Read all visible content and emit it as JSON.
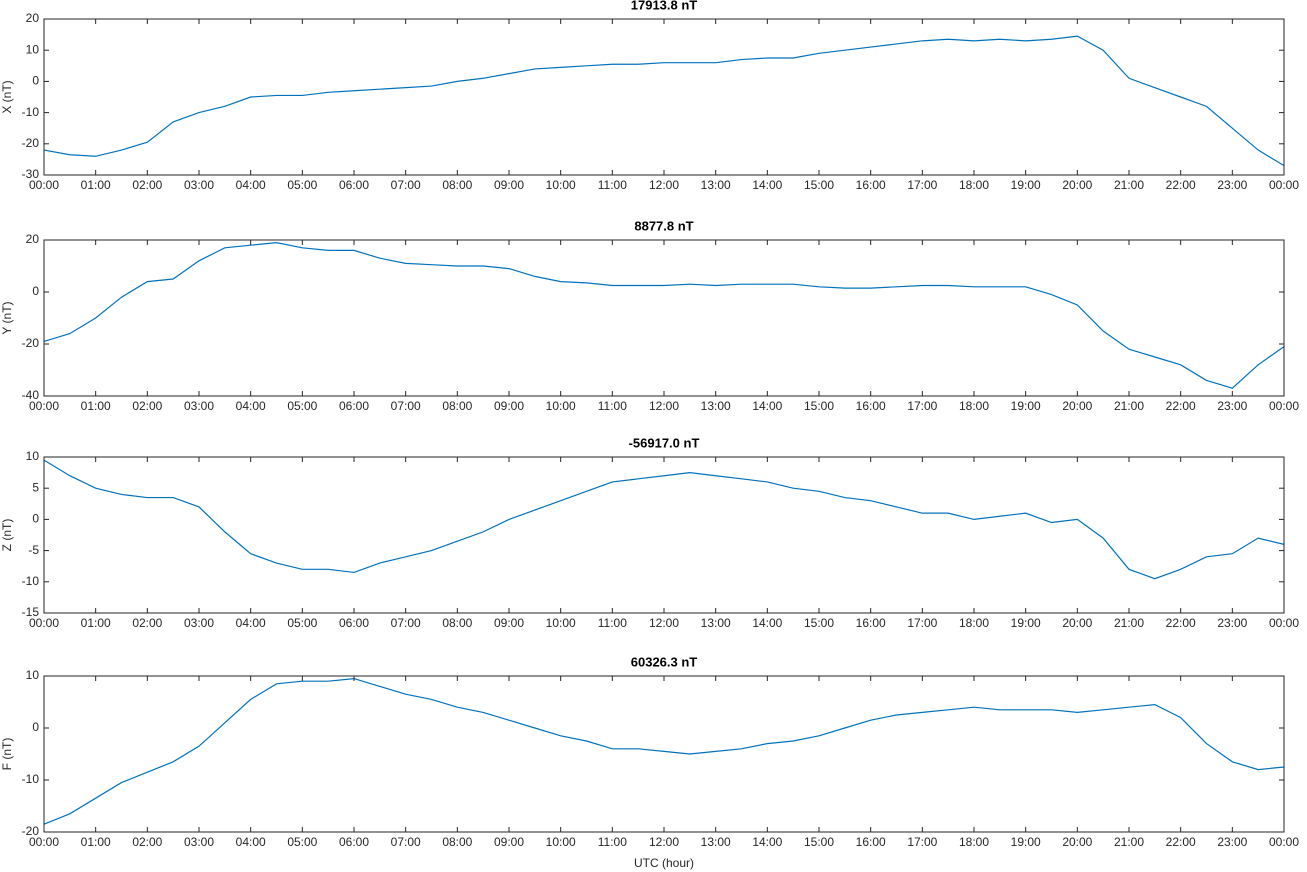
{
  "chart_data": [
    {
      "type": "line",
      "title": "17913.8 nT",
      "ylabel": "X (nT)",
      "color": "#0072bd",
      "x": [
        0,
        0.5,
        1,
        1.5,
        2,
        2.5,
        3,
        3.5,
        4,
        4.5,
        5,
        5.5,
        6,
        6.5,
        7,
        7.5,
        8,
        8.5,
        9,
        9.5,
        10,
        10.5,
        11,
        11.5,
        12,
        12.5,
        13,
        13.5,
        14,
        14.5,
        15,
        15.5,
        16,
        16.5,
        17,
        17.5,
        18,
        18.5,
        19,
        19.5,
        20,
        20.5,
        21,
        21.5,
        22,
        22.5,
        23,
        23.5,
        24
      ],
      "values": [
        -22,
        -23.5,
        -24,
        -22,
        -19.5,
        -13,
        -10,
        -8,
        -5,
        -4.5,
        -4.5,
        -3.5,
        -3,
        -2.5,
        -2,
        -1.5,
        0,
        1,
        2.5,
        4,
        4.5,
        5,
        5.5,
        5.5,
        6,
        6,
        6,
        7,
        7.5,
        7.5,
        9,
        10,
        11,
        12,
        13,
        13.5,
        13,
        13.5,
        13,
        13.5,
        14.5,
        10,
        1,
        -2,
        -5,
        -8,
        -15,
        -22,
        -27
      ],
      "xlim": [
        0,
        24
      ],
      "ylim": [
        -30,
        20
      ],
      "yticks": [
        -30,
        -20,
        -10,
        0,
        10,
        20
      ],
      "xticks": [
        {
          "value": 0,
          "label": "00:00"
        },
        {
          "value": 1,
          "label": "01:00"
        },
        {
          "value": 2,
          "label": "02:00"
        },
        {
          "value": 3,
          "label": "03:00"
        },
        {
          "value": 4,
          "label": "04:00"
        },
        {
          "value": 5,
          "label": "05:00"
        },
        {
          "value": 6,
          "label": "06:00"
        },
        {
          "value": 7,
          "label": "07:00"
        },
        {
          "value": 8,
          "label": "08:00"
        },
        {
          "value": 9,
          "label": "09:00"
        },
        {
          "value": 10,
          "label": "10:00"
        },
        {
          "value": 11,
          "label": "11:00"
        },
        {
          "value": 12,
          "label": "12:00"
        },
        {
          "value": 13,
          "label": "13:00"
        },
        {
          "value": 14,
          "label": "14:00"
        },
        {
          "value": 15,
          "label": "15:00"
        },
        {
          "value": 16,
          "label": "16:00"
        },
        {
          "value": 17,
          "label": "17:00"
        },
        {
          "value": 18,
          "label": "18:00"
        },
        {
          "value": 19,
          "label": "19:00"
        },
        {
          "value": 20,
          "label": "20:00"
        },
        {
          "value": 21,
          "label": "21:00"
        },
        {
          "value": 22,
          "label": "22:00"
        },
        {
          "value": 23,
          "label": "23:00"
        },
        {
          "value": 24,
          "label": "00:00"
        }
      ]
    },
    {
      "type": "line",
      "title": "8877.8 nT",
      "ylabel": "Y (nT)",
      "color": "#0072bd",
      "x": [
        0,
        0.5,
        1,
        1.5,
        2,
        2.5,
        3,
        3.5,
        4,
        4.5,
        5,
        5.5,
        6,
        6.5,
        7,
        7.5,
        8,
        8.5,
        9,
        9.5,
        10,
        10.5,
        11,
        11.5,
        12,
        12.5,
        13,
        13.5,
        14,
        14.5,
        15,
        15.5,
        16,
        16.5,
        17,
        17.5,
        18,
        18.5,
        19,
        19.5,
        20,
        20.5,
        21,
        21.5,
        22,
        22.5,
        23,
        23.5,
        24
      ],
      "values": [
        -19,
        -16,
        -10,
        -2,
        4,
        5,
        12,
        17,
        18,
        19,
        17,
        16,
        16,
        13,
        11,
        10.5,
        10,
        10,
        9,
        6,
        4,
        3.5,
        2.5,
        2.5,
        2.5,
        3,
        2.5,
        3,
        3,
        3,
        2,
        1.5,
        1.5,
        2,
        2.5,
        2.5,
        2,
        2,
        2,
        -1,
        -5,
        -15,
        -22,
        -25,
        -28,
        -34,
        -37,
        -28,
        -21
      ],
      "xlim": [
        0,
        24
      ],
      "ylim": [
        -40,
        20
      ],
      "yticks": [
        -40,
        -20,
        0,
        20
      ],
      "xticks": [
        {
          "value": 0,
          "label": "00:00"
        },
        {
          "value": 1,
          "label": "01:00"
        },
        {
          "value": 2,
          "label": "02:00"
        },
        {
          "value": 3,
          "label": "03:00"
        },
        {
          "value": 4,
          "label": "04:00"
        },
        {
          "value": 5,
          "label": "05:00"
        },
        {
          "value": 6,
          "label": "06:00"
        },
        {
          "value": 7,
          "label": "07:00"
        },
        {
          "value": 8,
          "label": "08:00"
        },
        {
          "value": 9,
          "label": "09:00"
        },
        {
          "value": 10,
          "label": "10:00"
        },
        {
          "value": 11,
          "label": "11:00"
        },
        {
          "value": 12,
          "label": "12:00"
        },
        {
          "value": 13,
          "label": "13:00"
        },
        {
          "value": 14,
          "label": "14:00"
        },
        {
          "value": 15,
          "label": "15:00"
        },
        {
          "value": 16,
          "label": "16:00"
        },
        {
          "value": 17,
          "label": "17:00"
        },
        {
          "value": 18,
          "label": "18:00"
        },
        {
          "value": 19,
          "label": "19:00"
        },
        {
          "value": 20,
          "label": "20:00"
        },
        {
          "value": 21,
          "label": "21:00"
        },
        {
          "value": 22,
          "label": "22:00"
        },
        {
          "value": 23,
          "label": "23:00"
        },
        {
          "value": 24,
          "label": "00:00"
        }
      ]
    },
    {
      "type": "line",
      "title": "-56917.0 nT",
      "ylabel": "Z (nT)",
      "color": "#0072bd",
      "x": [
        0,
        0.5,
        1,
        1.5,
        2,
        2.5,
        3,
        3.5,
        4,
        4.5,
        5,
        5.5,
        6,
        6.5,
        7,
        7.5,
        8,
        8.5,
        9,
        9.5,
        10,
        10.5,
        11,
        11.5,
        12,
        12.5,
        13,
        13.5,
        14,
        14.5,
        15,
        15.5,
        16,
        16.5,
        17,
        17.5,
        18,
        18.5,
        19,
        19.5,
        20,
        20.5,
        21,
        21.5,
        22,
        22.5,
        23,
        23.5,
        24
      ],
      "values": [
        9.5,
        7,
        5,
        4,
        3.5,
        3.5,
        2,
        -2,
        -5.5,
        -7,
        -8,
        -8,
        -8.5,
        -7,
        -6,
        -5,
        -3.5,
        -2,
        0,
        1.5,
        3,
        4.5,
        6,
        6.5,
        7,
        7.5,
        7,
        6.5,
        6,
        5,
        4.5,
        3.5,
        3,
        2,
        1,
        1,
        0,
        0.5,
        1,
        -0.5,
        0,
        -3,
        -8,
        -9.5,
        -8,
        -6,
        -5.5,
        -3,
        -4
      ],
      "xlim": [
        0,
        24
      ],
      "ylim": [
        -15,
        10
      ],
      "yticks": [
        -15,
        -10,
        -5,
        0,
        5,
        10
      ],
      "xticks": [
        {
          "value": 0,
          "label": "00:00"
        },
        {
          "value": 1,
          "label": "01:00"
        },
        {
          "value": 2,
          "label": "02:00"
        },
        {
          "value": 3,
          "label": "03:00"
        },
        {
          "value": 4,
          "label": "04:00"
        },
        {
          "value": 5,
          "label": "05:00"
        },
        {
          "value": 6,
          "label": "06:00"
        },
        {
          "value": 7,
          "label": "07:00"
        },
        {
          "value": 8,
          "label": "08:00"
        },
        {
          "value": 9,
          "label": "09:00"
        },
        {
          "value": 10,
          "label": "10:00"
        },
        {
          "value": 11,
          "label": "11:00"
        },
        {
          "value": 12,
          "label": "12:00"
        },
        {
          "value": 13,
          "label": "13:00"
        },
        {
          "value": 14,
          "label": "14:00"
        },
        {
          "value": 15,
          "label": "15:00"
        },
        {
          "value": 16,
          "label": "16:00"
        },
        {
          "value": 17,
          "label": "17:00"
        },
        {
          "value": 18,
          "label": "18:00"
        },
        {
          "value": 19,
          "label": "19:00"
        },
        {
          "value": 20,
          "label": "20:00"
        },
        {
          "value": 21,
          "label": "21:00"
        },
        {
          "value": 22,
          "label": "22:00"
        },
        {
          "value": 23,
          "label": "23:00"
        },
        {
          "value": 24,
          "label": "00:00"
        }
      ]
    },
    {
      "type": "line",
      "title": "60326.3 nT",
      "ylabel": "F (nT)",
      "xlabel": "UTC (hour)",
      "color": "#0072bd",
      "x": [
        0,
        0.5,
        1,
        1.5,
        2,
        2.5,
        3,
        3.5,
        4,
        4.5,
        5,
        5.5,
        6,
        6.5,
        7,
        7.5,
        8,
        8.5,
        9,
        9.5,
        10,
        10.5,
        11,
        11.5,
        12,
        12.5,
        13,
        13.5,
        14,
        14.5,
        15,
        15.5,
        16,
        16.5,
        17,
        17.5,
        18,
        18.5,
        19,
        19.5,
        20,
        20.5,
        21,
        21.5,
        22,
        22.5,
        23,
        23.5,
        24
      ],
      "values": [
        -18.5,
        -16.5,
        -13.5,
        -10.5,
        -8.5,
        -6.5,
        -3.5,
        1,
        5.5,
        8.5,
        9,
        9,
        9.5,
        8,
        6.5,
        5.5,
        4,
        3,
        1.5,
        0,
        -1.5,
        -2.5,
        -4,
        -4,
        -4.5,
        -5,
        -4.5,
        -4,
        -3,
        -2.5,
        -1.5,
        0,
        1.5,
        2.5,
        3,
        3.5,
        4,
        3.5,
        3.5,
        3.5,
        3,
        3.5,
        4,
        4.5,
        2,
        -3,
        -6.5,
        -8,
        -7.5
      ],
      "xlim": [
        0,
        24
      ],
      "ylim": [
        -20,
        10
      ],
      "yticks": [
        -20,
        -10,
        0,
        10
      ],
      "xticks": [
        {
          "value": 0,
          "label": "00:00"
        },
        {
          "value": 1,
          "label": "01:00"
        },
        {
          "value": 2,
          "label": "02:00"
        },
        {
          "value": 3,
          "label": "03:00"
        },
        {
          "value": 4,
          "label": "04:00"
        },
        {
          "value": 5,
          "label": "05:00"
        },
        {
          "value": 6,
          "label": "06:00"
        },
        {
          "value": 7,
          "label": "07:00"
        },
        {
          "value": 8,
          "label": "08:00"
        },
        {
          "value": 9,
          "label": "09:00"
        },
        {
          "value": 10,
          "label": "10:00"
        },
        {
          "value": 11,
          "label": "11:00"
        },
        {
          "value": 12,
          "label": "12:00"
        },
        {
          "value": 13,
          "label": "13:00"
        },
        {
          "value": 14,
          "label": "14:00"
        },
        {
          "value": 15,
          "label": "15:00"
        },
        {
          "value": 16,
          "label": "16:00"
        },
        {
          "value": 17,
          "label": "17:00"
        },
        {
          "value": 18,
          "label": "18:00"
        },
        {
          "value": 19,
          "label": "19:00"
        },
        {
          "value": 20,
          "label": "20:00"
        },
        {
          "value": 21,
          "label": "21:00"
        },
        {
          "value": 22,
          "label": "22:00"
        },
        {
          "value": 23,
          "label": "23:00"
        },
        {
          "value": 24,
          "label": "00:00"
        }
      ]
    }
  ]
}
